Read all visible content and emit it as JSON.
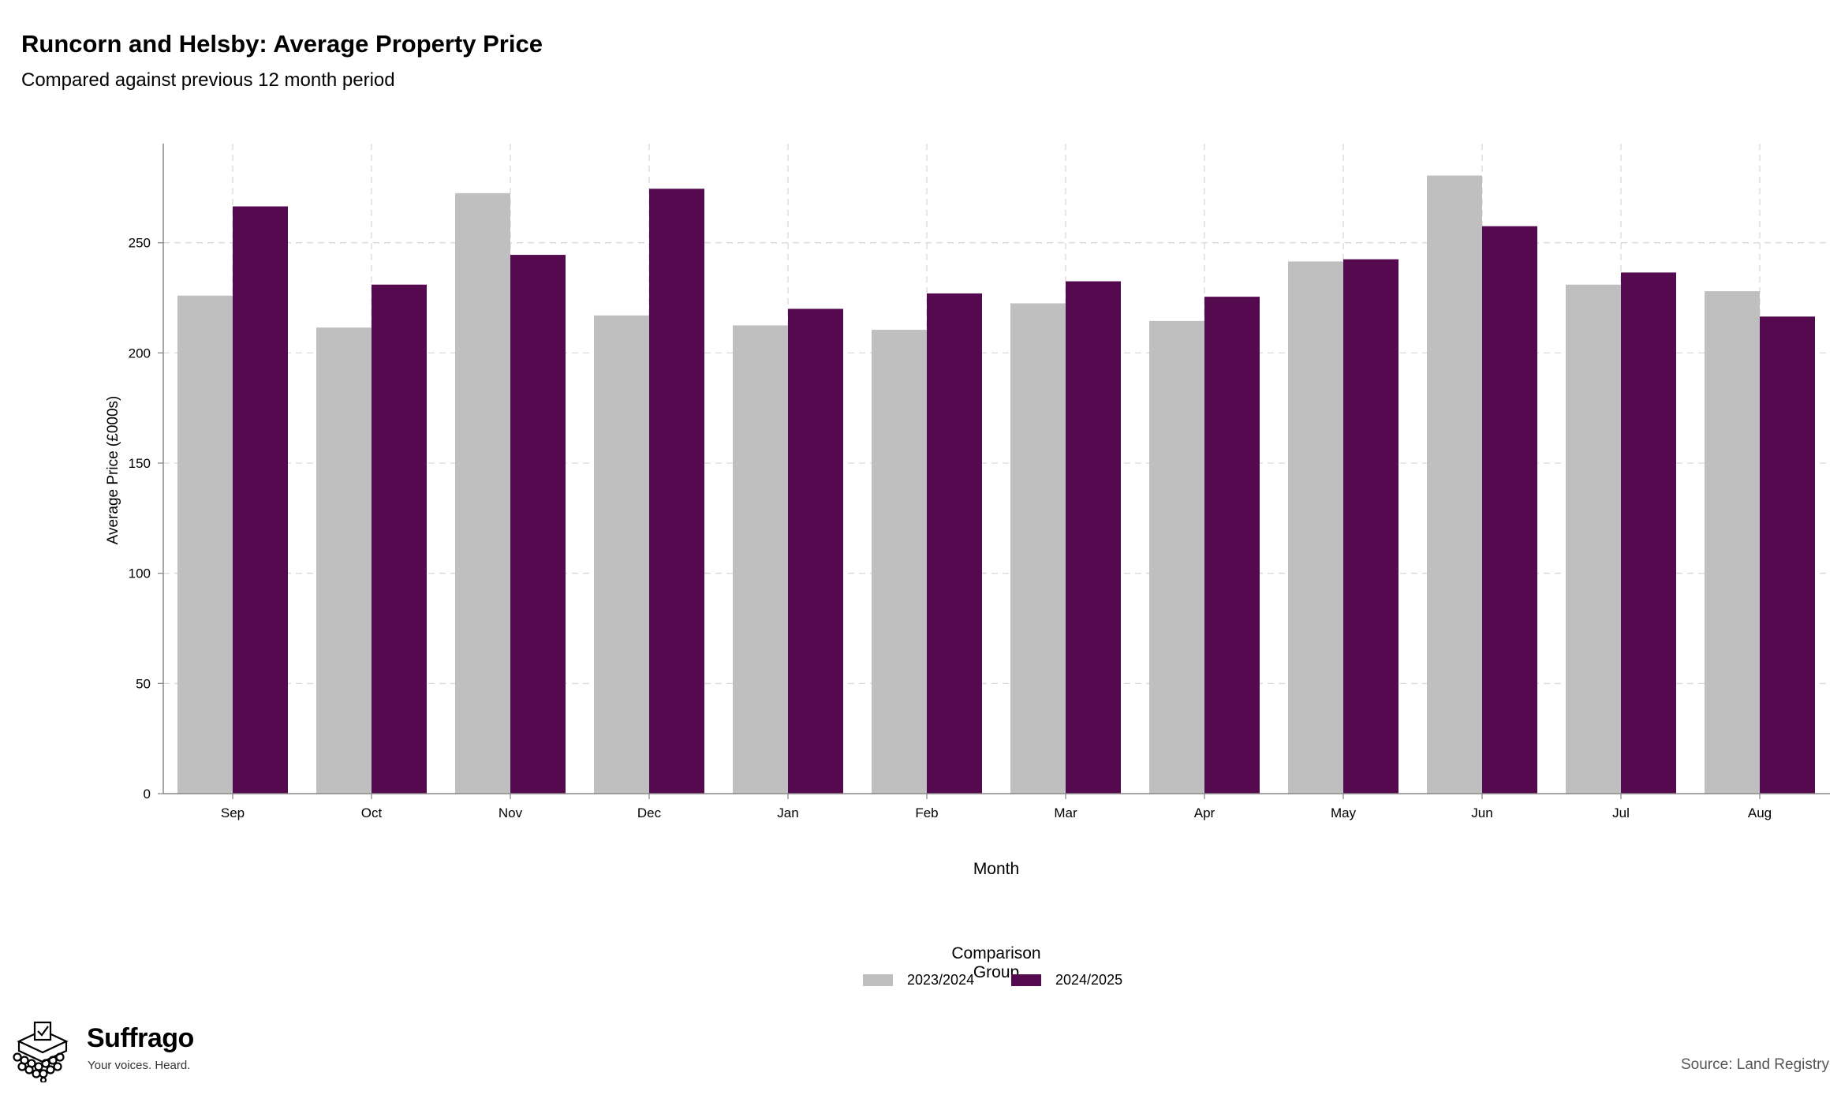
{
  "header": {
    "title": "Runcorn and Helsby: Average Property Price",
    "subtitle": "Compared against previous 12 month period"
  },
  "chart_data": {
    "type": "bar",
    "categories": [
      "Sep",
      "Oct",
      "Nov",
      "Dec",
      "Jan",
      "Feb",
      "Mar",
      "Apr",
      "May",
      "Jun",
      "Jul",
      "Aug"
    ],
    "series": [
      {
        "name": "2023/2024",
        "color": "#bfbfbf",
        "values": [
          226,
          211.5,
          272.5,
          217,
          212.5,
          210.5,
          222.5,
          214.5,
          241.5,
          280.5,
          231,
          228
        ]
      },
      {
        "name": "2024/2025",
        "color": "#550a50",
        "values": [
          266.5,
          231,
          244.5,
          274.5,
          220,
          227,
          232.5,
          225.5,
          242.5,
          257.5,
          236.5,
          216.5
        ]
      }
    ],
    "xlabel": "Month",
    "ylabel": "Average Price (£000s)",
    "ylim": [
      0,
      295
    ],
    "yticks": [
      0,
      50,
      100,
      150,
      200,
      250
    ],
    "grid": true,
    "legend": {
      "title": "Comparison Group",
      "position": "bottom"
    }
  },
  "footer": {
    "source": "Source: Land Registry",
    "brand_name": "Suffrago",
    "brand_tagline": "Your voices. Heard."
  }
}
